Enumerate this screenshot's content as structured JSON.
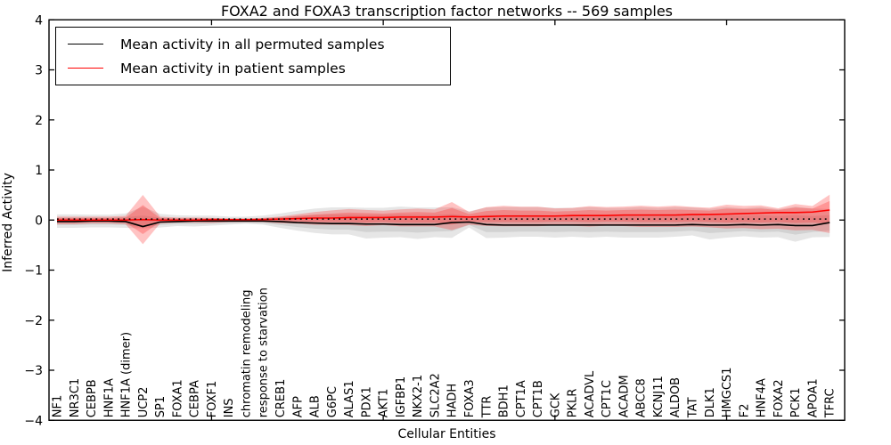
{
  "title": "FOXA2 and FOXA3 transcription factor networks -- 569 samples",
  "xlabel": "Cellular Entities",
  "ylabel": "Inferred Activity",
  "legend": {
    "items": [
      {
        "label": "Mean activity in all permuted samples",
        "color": "#000000"
      },
      {
        "label": "Mean activity in patient samples",
        "color": "#ff0000"
      }
    ]
  },
  "chart_data": {
    "type": "line",
    "title": "FOXA2 and FOXA3 transcription factor networks -- 569 samples",
    "xlabel": "Cellular Entities",
    "ylabel": "Inferred Activity",
    "ylim": [
      -4,
      4
    ],
    "yticks": [
      -4,
      -3,
      -2,
      -1,
      0,
      1,
      2,
      3,
      4
    ],
    "xtick_marks_at_category_index": [
      9,
      19,
      29,
      39
    ],
    "grid": false,
    "legend_position": "upper left",
    "background": "#ffffff",
    "axis_color": "#000000",
    "categories": [
      "NF1",
      "NR3C1",
      "CEBPB",
      "HNF1A",
      "HNF1A (dimer)",
      "UCP2",
      "SP1",
      "FOXA1",
      "CEBPA",
      "FOXF1",
      "INS",
      "chromatin remodeling",
      "response to starvation",
      "CREB1",
      "AFP",
      "ALB",
      "G6PC",
      "ALAS1",
      "PDX1",
      "AKT1",
      "IGFBP1",
      "NKX2-1",
      "SLC2A2",
      "HADH",
      "FOXA3",
      "TTR",
      "BDH1",
      "CPT1A",
      "CPT1B",
      "GCK",
      "PKLR",
      "ACADVL",
      "CPT1C",
      "ACADM",
      "ABCC8",
      "KCNJ11",
      "ALDOB",
      "TAT",
      "DLK1",
      "HMGCS1",
      "F2",
      "HNF4A",
      "FOXA2",
      "PCK1",
      "APOA1",
      "TFRC"
    ],
    "series": [
      {
        "name": "Mean activity in all permuted samples",
        "color": "#000000",
        "style": "solid",
        "width": 1.6,
        "values": [
          -0.03,
          -0.03,
          -0.02,
          -0.02,
          -0.03,
          -0.13,
          -0.04,
          -0.03,
          -0.02,
          -0.02,
          -0.02,
          -0.02,
          -0.02,
          -0.03,
          -0.05,
          -0.06,
          -0.07,
          -0.07,
          -0.08,
          -0.08,
          -0.09,
          -0.09,
          -0.09,
          -0.05,
          -0.04,
          -0.09,
          -0.1,
          -0.1,
          -0.1,
          -0.1,
          -0.1,
          -0.1,
          -0.1,
          -0.1,
          -0.1,
          -0.1,
          -0.1,
          -0.09,
          -0.1,
          -0.1,
          -0.09,
          -0.1,
          -0.09,
          -0.11,
          -0.11,
          -0.05
        ]
      },
      {
        "name": "Mean activity in patient samples",
        "color": "#ff0000",
        "style": "solid",
        "width": 1.6,
        "values": [
          0.0,
          0.0,
          0.0,
          0.0,
          0.0,
          0.01,
          0.0,
          0.0,
          0.0,
          0.01,
          0.01,
          0.01,
          0.01,
          0.02,
          0.03,
          0.04,
          0.04,
          0.05,
          0.05,
          0.05,
          0.06,
          0.06,
          0.06,
          0.07,
          0.06,
          0.07,
          0.08,
          0.08,
          0.08,
          0.08,
          0.09,
          0.09,
          0.09,
          0.1,
          0.1,
          0.1,
          0.1,
          0.11,
          0.11,
          0.12,
          0.13,
          0.14,
          0.15,
          0.15,
          0.16,
          0.2
        ]
      }
    ],
    "reference_line": {
      "name": "zero-reference",
      "value": 0.02,
      "color": "#000000",
      "style": "dotted"
    },
    "bands": [
      {
        "name": "permuted-samples-spread",
        "color": "rgba(130,130,130,0.20)",
        "outer_scale": 1.8,
        "mean_series": 0,
        "top": [
          0.05,
          0.05,
          0.05,
          0.05,
          0.06,
          0.09,
          0.05,
          0.04,
          0.04,
          0.04,
          0.03,
          0.03,
          0.04,
          0.06,
          0.08,
          0.1,
          0.11,
          0.11,
          0.1,
          0.1,
          0.11,
          0.1,
          0.1,
          0.12,
          0.08,
          0.1,
          0.1,
          0.1,
          0.1,
          0.09,
          0.09,
          0.1,
          0.09,
          0.09,
          0.1,
          0.09,
          0.1,
          0.1,
          0.08,
          0.1,
          0.09,
          0.1,
          0.08,
          0.1,
          0.08,
          0.1
        ],
        "bottom": [
          -0.1,
          -0.1,
          -0.09,
          -0.09,
          -0.1,
          -0.15,
          -0.1,
          -0.08,
          -0.08,
          -0.07,
          -0.06,
          -0.05,
          -0.06,
          -0.1,
          -0.14,
          -0.17,
          -0.19,
          -0.19,
          -0.24,
          -0.23,
          -0.23,
          -0.25,
          -0.23,
          -0.22,
          -0.1,
          -0.24,
          -0.24,
          -0.23,
          -0.23,
          -0.24,
          -0.23,
          -0.24,
          -0.23,
          -0.24,
          -0.24,
          -0.24,
          -0.23,
          -0.21,
          -0.26,
          -0.24,
          -0.22,
          -0.24,
          -0.23,
          -0.29,
          -0.24,
          -0.21
        ]
      },
      {
        "name": "patient-samples-spread",
        "color": "rgba(255,25,25,0.26)",
        "outer_scale": 1.7,
        "mean_series": 1,
        "top": [
          0.04,
          0.04,
          0.04,
          0.04,
          0.05,
          0.3,
          0.04,
          0.03,
          0.03,
          0.03,
          0.02,
          0.02,
          0.03,
          0.05,
          0.08,
          0.11,
          0.13,
          0.15,
          0.14,
          0.13,
          0.15,
          0.16,
          0.15,
          0.24,
          0.12,
          0.18,
          0.2,
          0.19,
          0.19,
          0.17,
          0.18,
          0.2,
          0.19,
          0.2,
          0.21,
          0.2,
          0.21,
          0.2,
          0.19,
          0.23,
          0.22,
          0.23,
          0.2,
          0.25,
          0.23,
          0.38
        ],
        "bottom": [
          -0.05,
          -0.05,
          -0.04,
          -0.04,
          -0.05,
          -0.28,
          -0.04,
          -0.03,
          -0.03,
          -0.03,
          -0.02,
          -0.02,
          -0.02,
          -0.03,
          -0.03,
          -0.04,
          -0.04,
          -0.04,
          -0.05,
          -0.04,
          -0.05,
          -0.05,
          -0.05,
          -0.09,
          -0.03,
          -0.04,
          -0.04,
          -0.04,
          -0.04,
          -0.03,
          -0.03,
          -0.04,
          -0.03,
          -0.03,
          -0.04,
          -0.04,
          -0.04,
          -0.03,
          -0.04,
          -0.05,
          -0.04,
          -0.05,
          -0.04,
          -0.06,
          -0.05,
          -0.07
        ]
      }
    ]
  }
}
